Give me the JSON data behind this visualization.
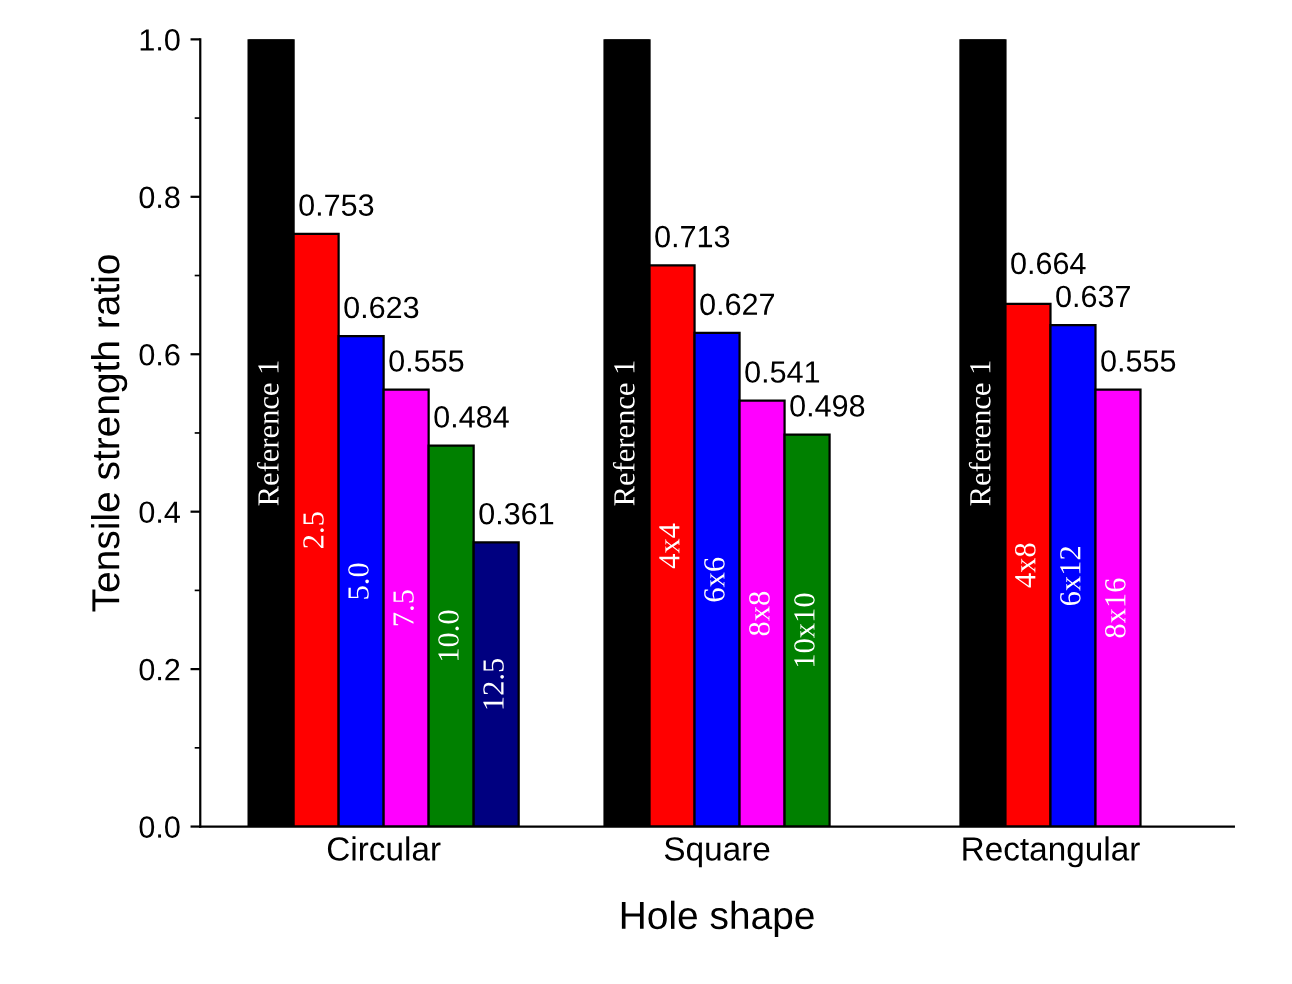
{
  "chart_data": {
    "type": "bar",
    "xlabel": "Hole shape",
    "ylabel": "Tensile strength ratio",
    "categories": [
      "Circular",
      "Square",
      "Rectangular"
    ],
    "series": [
      {
        "color": "#000000",
        "values": [
          1,
          1,
          1
        ],
        "value_labels": [
          null,
          null,
          null
        ]
      },
      {
        "color": "#ff0000",
        "values": [
          0.753,
          0.713,
          0.664
        ],
        "value_labels": [
          "0.753",
          "0.713",
          "0.664"
        ]
      },
      {
        "color": "#0000ff",
        "values": [
          0.623,
          0.627,
          0.637
        ],
        "value_labels": [
          "0.623",
          "0.627",
          "0.637"
        ]
      },
      {
        "color": "#ff00ff",
        "values": [
          0.555,
          0.541,
          0.555
        ],
        "value_labels": [
          "0.555",
          "0.541",
          "0.555"
        ]
      },
      {
        "color": "#008000",
        "values": [
          0.484,
          0.498,
          null
        ],
        "value_labels": [
          "0.484",
          "0.498",
          null
        ]
      },
      {
        "color": "#000080",
        "values": [
          0.361,
          null,
          null
        ],
        "value_labels": [
          "0.361",
          null,
          null
        ]
      }
    ],
    "annotations": [
      "Reference 1",
      "2.5",
      "5.0",
      "7.5",
      "10.0",
      "12.5",
      "Reference 1",
      "4x4",
      "6x6",
      "8x8",
      "10x10",
      "Reference 1",
      "4x8",
      "6x12",
      "8x16"
    ],
    "ylim": [
      0,
      1.0
    ],
    "yticks": [
      {
        "value": 0,
        "label": "0.0"
      },
      {
        "value": 0.2,
        "label": "0.2"
      },
      {
        "value": 0.4,
        "label": "0.4"
      },
      {
        "value": 0.6,
        "label": "0.6"
      },
      {
        "value": 0.8,
        "label": "0.8"
      },
      {
        "value": 1.0,
        "label": "1.0"
      }
    ],
    "grid": false
  }
}
